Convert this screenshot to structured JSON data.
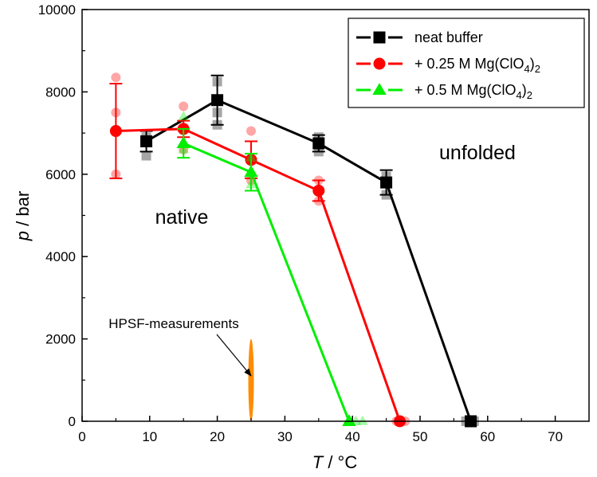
{
  "chart_data": {
    "type": "line",
    "title": "",
    "xlabel": {
      "symbol": "T",
      "unit": " / °C"
    },
    "ylabel": {
      "symbol": "p",
      "unit": " / bar"
    },
    "xlim": [
      0,
      75
    ],
    "ylim": [
      0,
      10000
    ],
    "x_ticks": [
      0,
      10,
      20,
      30,
      40,
      50,
      60,
      70
    ],
    "y_ticks": [
      0,
      2000,
      4000,
      6000,
      8000,
      10000
    ],
    "x_tick_labels": [
      "0",
      "10",
      "20",
      "30",
      "40",
      "50",
      "60",
      "70"
    ],
    "y_tick_labels": [
      "0",
      "2000",
      "4000",
      "6000",
      "8000",
      "10000"
    ],
    "grid": false,
    "legend_position": "top-right",
    "series": [
      {
        "id": "neat",
        "name": "neat buffer",
        "legend_parts": {
          "main": "neat buffer",
          "sub1": "",
          "mid": "",
          "sub2": ""
        },
        "color": "#000000",
        "marker": "square",
        "x": [
          9.5,
          20,
          35,
          45,
          57.5
        ],
        "y": [
          6800,
          7800,
          6750,
          5800,
          0
        ],
        "err": [
          250,
          600,
          200,
          300,
          0
        ],
        "raw": [
          {
            "x": 9.5,
            "y": 6450
          },
          {
            "x": 9.5,
            "y": 6900
          },
          {
            "x": 20,
            "y": 7200
          },
          {
            "x": 20,
            "y": 7500
          },
          {
            "x": 20,
            "y": 8250
          },
          {
            "x": 35,
            "y": 6550
          },
          {
            "x": 35,
            "y": 6900
          },
          {
            "x": 45,
            "y": 5500
          },
          {
            "x": 45,
            "y": 5950
          },
          {
            "x": 56.8,
            "y": 0
          },
          {
            "x": 58.0,
            "y": 0
          }
        ]
      },
      {
        "id": "mg025",
        "name": "+ 0.25 M Mg(ClO4)2",
        "legend_parts": {
          "main": "+ 0.25 M Mg(ClO",
          "sub1": "4",
          "mid": ")",
          "sub2": "2"
        },
        "color": "#ff0000",
        "marker": "circle",
        "x": [
          5,
          15,
          25,
          35,
          47
        ],
        "y": [
          7050,
          7100,
          6350,
          5600,
          0
        ],
        "err": [
          1150,
          200,
          450,
          250,
          0
        ],
        "raw": [
          {
            "x": 5,
            "y": 8350
          },
          {
            "x": 5,
            "y": 7500
          },
          {
            "x": 5,
            "y": 6000
          },
          {
            "x": 15,
            "y": 7650
          },
          {
            "x": 15,
            "y": 6600
          },
          {
            "x": 25,
            "y": 7050
          },
          {
            "x": 25,
            "y": 5850
          },
          {
            "x": 35,
            "y": 5850
          },
          {
            "x": 35,
            "y": 5350
          },
          {
            "x": 46.5,
            "y": 0
          },
          {
            "x": 47.8,
            "y": 0
          }
        ]
      },
      {
        "id": "mg05",
        "name": "+ 0.5 M Mg(ClO4)2",
        "legend_parts": {
          "main": "+ 0.5 M Mg(ClO",
          "sub1": "4",
          "mid": ")",
          "sub2": "2"
        },
        "color": "#00ee00",
        "marker": "triangle",
        "x": [
          15,
          25,
          39.5
        ],
        "y": [
          6750,
          6050,
          0
        ],
        "err": [
          350,
          450,
          0
        ],
        "raw": [
          {
            "x": 15,
            "y": 7400
          },
          {
            "x": 15,
            "y": 6600
          },
          {
            "x": 25,
            "y": 6400
          },
          {
            "x": 25,
            "y": 5750
          },
          {
            "x": 40.5,
            "y": 0
          },
          {
            "x": 41.5,
            "y": 0
          }
        ]
      }
    ],
    "annotations": {
      "native": {
        "text": "native",
        "x": 18,
        "y": 4900
      },
      "unfolded": {
        "text": "unfolded",
        "x": 57.5,
        "y": 6500
      },
      "hpsf": {
        "text": "HPSF-measurements",
        "x": 11.7,
        "y": 2350
      },
      "hpsf_region": {
        "x": 25,
        "y_min": 0,
        "y_max": 2000,
        "color": "#ff8c00"
      }
    }
  }
}
